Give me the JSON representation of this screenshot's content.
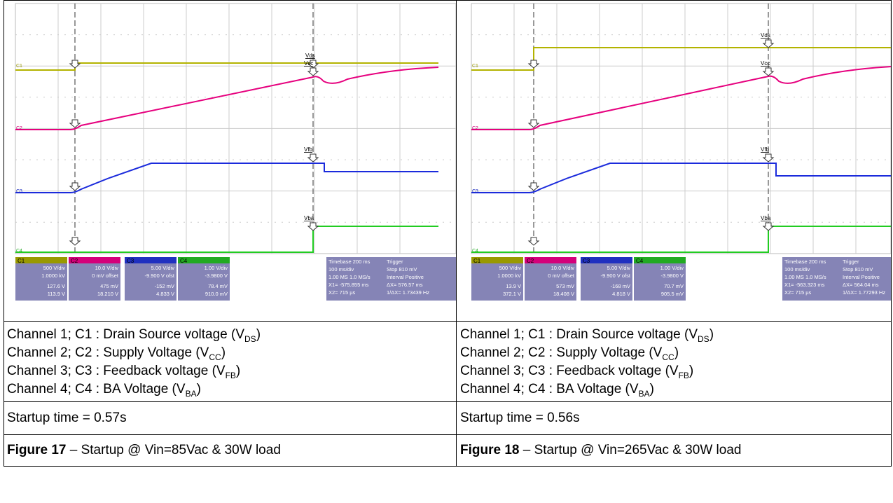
{
  "panels": [
    {
      "scope": {
        "channel_labels": [
          "C1",
          "C2",
          "C3",
          "C4"
        ],
        "markers": [
          "Vds",
          "Vcc",
          "Vfb",
          "Vba"
        ],
        "channels": [
          {
            "name": "C1",
            "rows": [
              "500 V/div",
              "1.0000 kV",
              "127.6 V",
              "113.9 V"
            ]
          },
          {
            "name": "C2",
            "rows": [
              "10.0 V/div",
              "0 mV offset",
              "475 mV",
              "18.210 V"
            ]
          },
          {
            "name": "C3",
            "rows": [
              "5.00 V/div",
              "-9.900 V ofst",
              "-152 mV",
              "4.833 V"
            ]
          },
          {
            "name": "C4",
            "rows": [
              "1.00 V/div",
              "-3.9800 V",
              "78.4 mV",
              "910.0 mV"
            ]
          }
        ],
        "timebase": [
          "Timebase 200 ms",
          "100 ms/div",
          "1.00 MS 1.0 MS/s",
          "X1= -575.855 ms",
          "X2= 715 µs"
        ],
        "trigger": [
          "Trigger",
          "Stop 810 mV",
          "Interval Positive",
          "ΔX= 576.57 ms",
          "1/ΔX= 1.73439 Hz"
        ]
      },
      "channels": [
        {
          "text": "Channel 1; C1 : Drain Source voltage (V",
          "sub": "DS",
          "end": ")"
        },
        {
          "text": "Channel 2; C2 : Supply Voltage (V",
          "sub": "CC",
          "end": ")"
        },
        {
          "text": "Channel 3; C3 : Feedback voltage (V",
          "sub": "FB",
          "end": ")"
        },
        {
          "text": "Channel 4; C4 : BA Voltage (V",
          "sub": "BA",
          "end": ")"
        }
      ],
      "startup": "Startup time = 0.57s",
      "figure": {
        "label": "Figure 17",
        "text": " – Startup @ Vin=85Vac & 30W load"
      }
    },
    {
      "scope": {
        "channel_labels": [
          "C1",
          "C2",
          "C3",
          "C4"
        ],
        "markers": [
          "Vds",
          "Vcc",
          "Vfb",
          "Vba"
        ],
        "channels": [
          {
            "name": "C1",
            "rows": [
              "500 V/div",
              "1.0000 kV",
              "13.9 V",
              "372.1 V"
            ]
          },
          {
            "name": "C2",
            "rows": [
              "10.0 V/div",
              "0 mV offset",
              "573 mV",
              "18.408 V"
            ]
          },
          {
            "name": "C3",
            "rows": [
              "5.00 V/div",
              "-9.900 V ofst",
              "-168 mV",
              "4.818 V"
            ]
          },
          {
            "name": "C4",
            "rows": [
              "1.00 V/div",
              "-3.9800 V",
              "70.7 mV",
              "905.5 mV"
            ]
          }
        ],
        "timebase": [
          "Timebase 200 ms",
          "100 ms/div",
          "1.00 MS 1.0 MS/s",
          "X1= -563.323 ms",
          "X2= 715 µs"
        ],
        "trigger": [
          "Trigger",
          "Stop 810 mV",
          "Interval Positive",
          "ΔX= 564.04 ms",
          "1/ΔX= 1.77293 Hz"
        ]
      },
      "channels": [
        {
          "text": "Channel 1; C1 : Drain Source voltage (V",
          "sub": "DS",
          "end": ")"
        },
        {
          "text": "Channel 2; C2 : Supply Voltage (V",
          "sub": "CC",
          "end": ")"
        },
        {
          "text": "Channel 3; C3 : Feedback voltage (V",
          "sub": "FB",
          "end": ")"
        },
        {
          "text": "Channel 4; C4 : BA Voltage (V",
          "sub": "BA",
          "end": ")"
        }
      ],
      "startup": "Startup time = 0.56s",
      "figure": {
        "label": "Figure 18",
        "text": " – Startup @ Vin=265Vac & 30W load"
      }
    }
  ]
}
